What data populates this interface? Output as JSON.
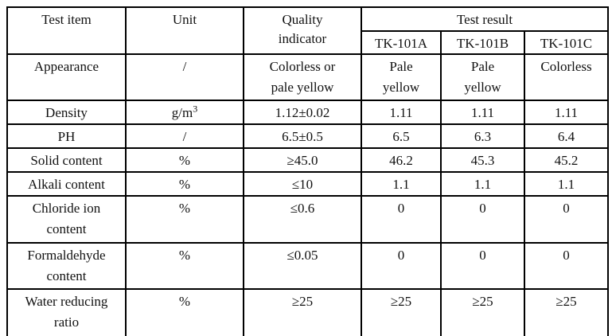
{
  "table": {
    "headers": {
      "test_item": "Test item",
      "unit": "Unit",
      "quality_indicator": "Quality\nindicator",
      "test_result": "Test result",
      "products": [
        "TK-101A",
        "TK-101B",
        "TK-101C"
      ]
    },
    "rows": [
      {
        "item": "Appearance",
        "unit": "/",
        "indicator": "Colorless or\npale yellow",
        "results": [
          "Pale\nyellow",
          "Pale\nyellow",
          "Colorless"
        ]
      },
      {
        "item": "Density",
        "unit": "g/m",
        "unit_sup": "3",
        "indicator": "1.12±0.02",
        "results": [
          "1.11",
          "1.11",
          "1.11"
        ]
      },
      {
        "item": "PH",
        "unit": "/",
        "indicator": "6.5±0.5",
        "results": [
          "6.5",
          "6.3",
          "6.4"
        ]
      },
      {
        "item": "Solid content",
        "unit": "%",
        "indicator": "≥45.0",
        "results": [
          "46.2",
          "45.3",
          "45.2"
        ]
      },
      {
        "item": "Alkali content",
        "unit": "%",
        "indicator": "≤10",
        "results": [
          "1.1",
          "1.1",
          "1.1"
        ]
      },
      {
        "item": "Chloride ion\ncontent",
        "unit": "%",
        "indicator": "≤0.6",
        "results": [
          "0",
          "0",
          "0"
        ]
      },
      {
        "item": "Formaldehyde\ncontent",
        "unit": "%",
        "indicator": "≤0.05",
        "results": [
          "0",
          "0",
          "0"
        ]
      },
      {
        "item": "Water reducing\nratio",
        "unit": "%",
        "indicator": "≥25",
        "results": [
          "≥25",
          "≥25",
          "≥25"
        ]
      }
    ]
  },
  "colors": {
    "border": "#000000",
    "text": "#111111",
    "background": "#ffffff"
  }
}
